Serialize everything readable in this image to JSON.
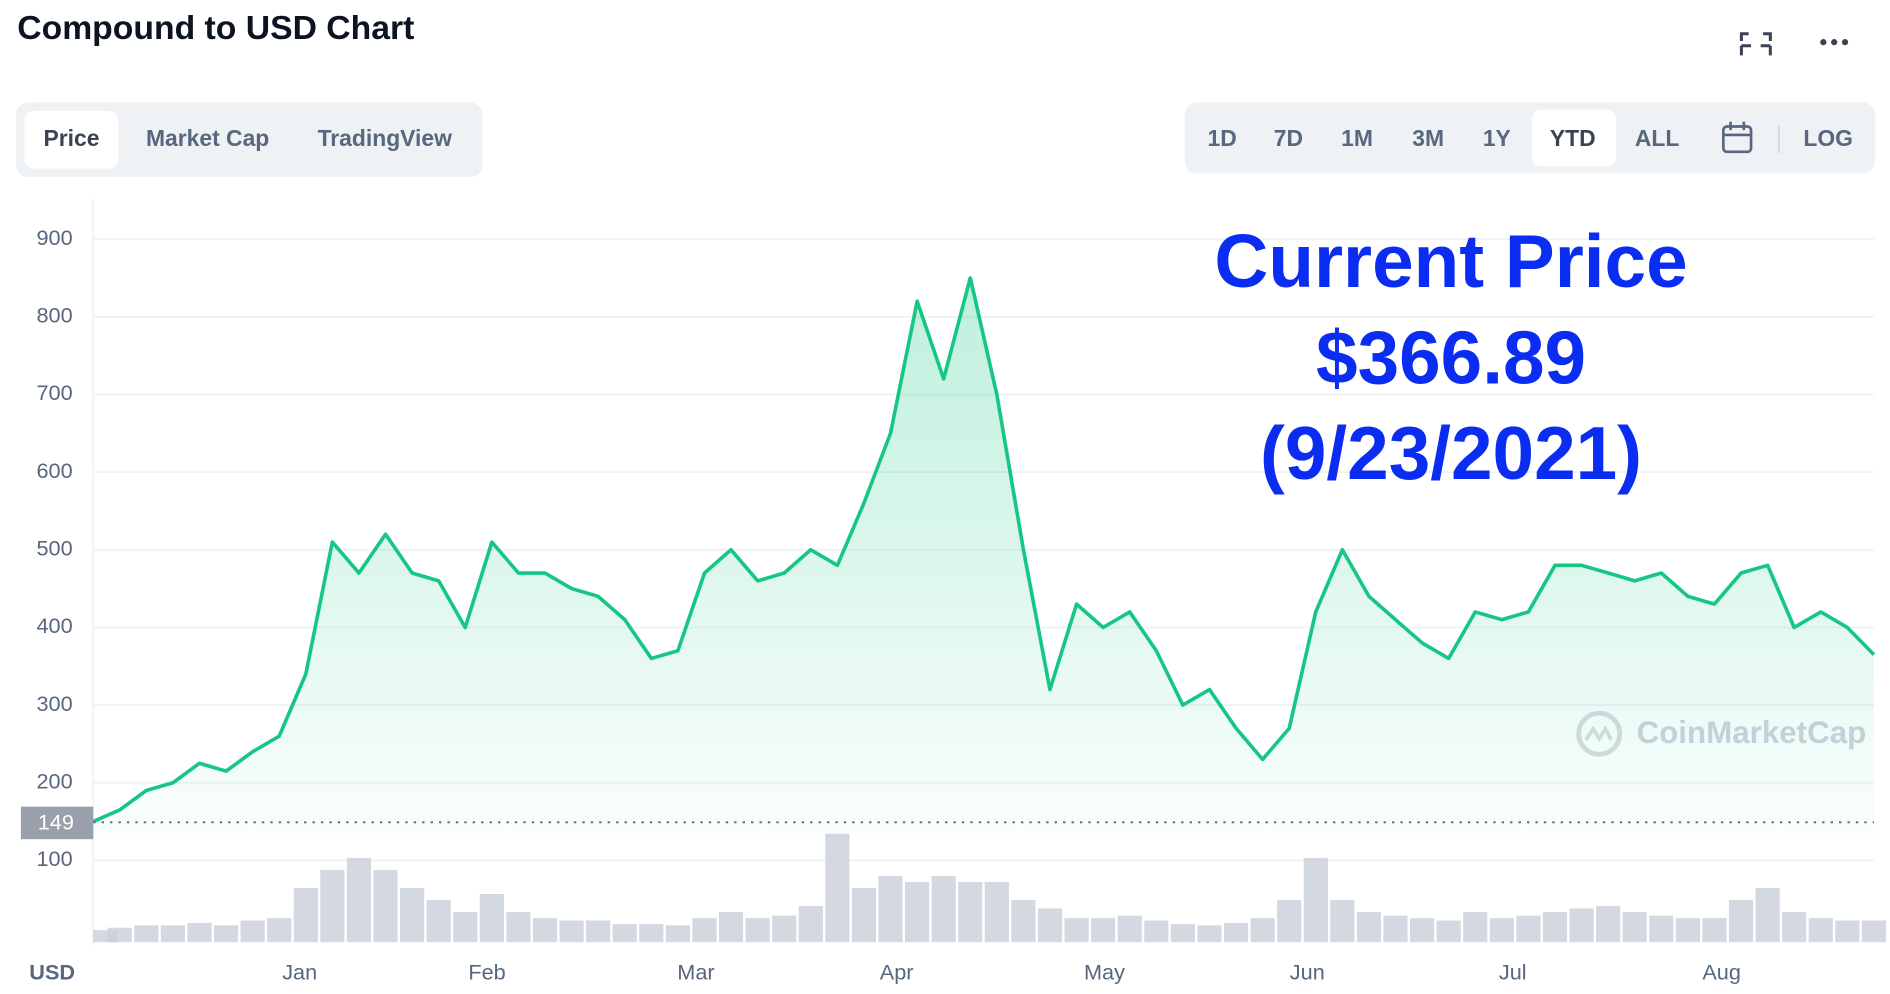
{
  "header": {
    "title": "Compound to USD Chart"
  },
  "tabs": [
    "Price",
    "Market Cap",
    "TradingView"
  ],
  "ranges": [
    "1D",
    "7D",
    "1M",
    "3M",
    "1Y",
    "YTD",
    "ALL"
  ],
  "log_label": "LOG",
  "chart_data": {
    "type": "line",
    "annotation": [
      "Current Price",
      "$366.89",
      "(9/23/2021)"
    ],
    "watermark": "CoinMarketCap",
    "y_axis_label": "USD",
    "color": "#16c784",
    "values": [
      150,
      165,
      190,
      200,
      225,
      215,
      240,
      260,
      340,
      510,
      470,
      520,
      470,
      460,
      400,
      510,
      470,
      470,
      450,
      440,
      410,
      360,
      370,
      470,
      500,
      460,
      470,
      500,
      480,
      560,
      650,
      820,
      720,
      850,
      700,
      500,
      320,
      430,
      400,
      420,
      370,
      300,
      320,
      270,
      230,
      270,
      420,
      500,
      440,
      410,
      380,
      360,
      420,
      410,
      420,
      480,
      480,
      470,
      460,
      470,
      440,
      430,
      470,
      480,
      400,
      420,
      400,
      365
    ],
    "volume": [
      10,
      12,
      14,
      14,
      16,
      14,
      18,
      20,
      45,
      60,
      70,
      60,
      45,
      35,
      25,
      40,
      25,
      20,
      18,
      18,
      15,
      15,
      14,
      20,
      25,
      20,
      22,
      30,
      90,
      45,
      55,
      50,
      55,
      50,
      50,
      35,
      28,
      20,
      20,
      22,
      18,
      15,
      14,
      16,
      20,
      35,
      70,
      35,
      25,
      22,
      20,
      18,
      25,
      20,
      22,
      25,
      28,
      30,
      25,
      22,
      20,
      20,
      35,
      45,
      25,
      20,
      18,
      18
    ],
    "reference_value": 149,
    "xlim": [
      0,
      67
    ],
    "xticks": [
      {
        "value": 7.77,
        "label": "Jan"
      },
      {
        "value": 14.82,
        "label": "Feb"
      },
      {
        "value": 22.68,
        "label": "Mar"
      },
      {
        "value": 30.23,
        "label": "Apr"
      },
      {
        "value": 38.05,
        "label": "May"
      },
      {
        "value": 45.68,
        "label": "Jun"
      },
      {
        "value": 53.41,
        "label": "Jul"
      },
      {
        "value": 61.27,
        "label": "Aug"
      }
    ],
    "ylim": [
      -10,
      952
    ],
    "yticks": [
      100,
      200,
      300,
      400,
      500,
      600,
      700,
      800,
      900
    ],
    "grid": true
  }
}
